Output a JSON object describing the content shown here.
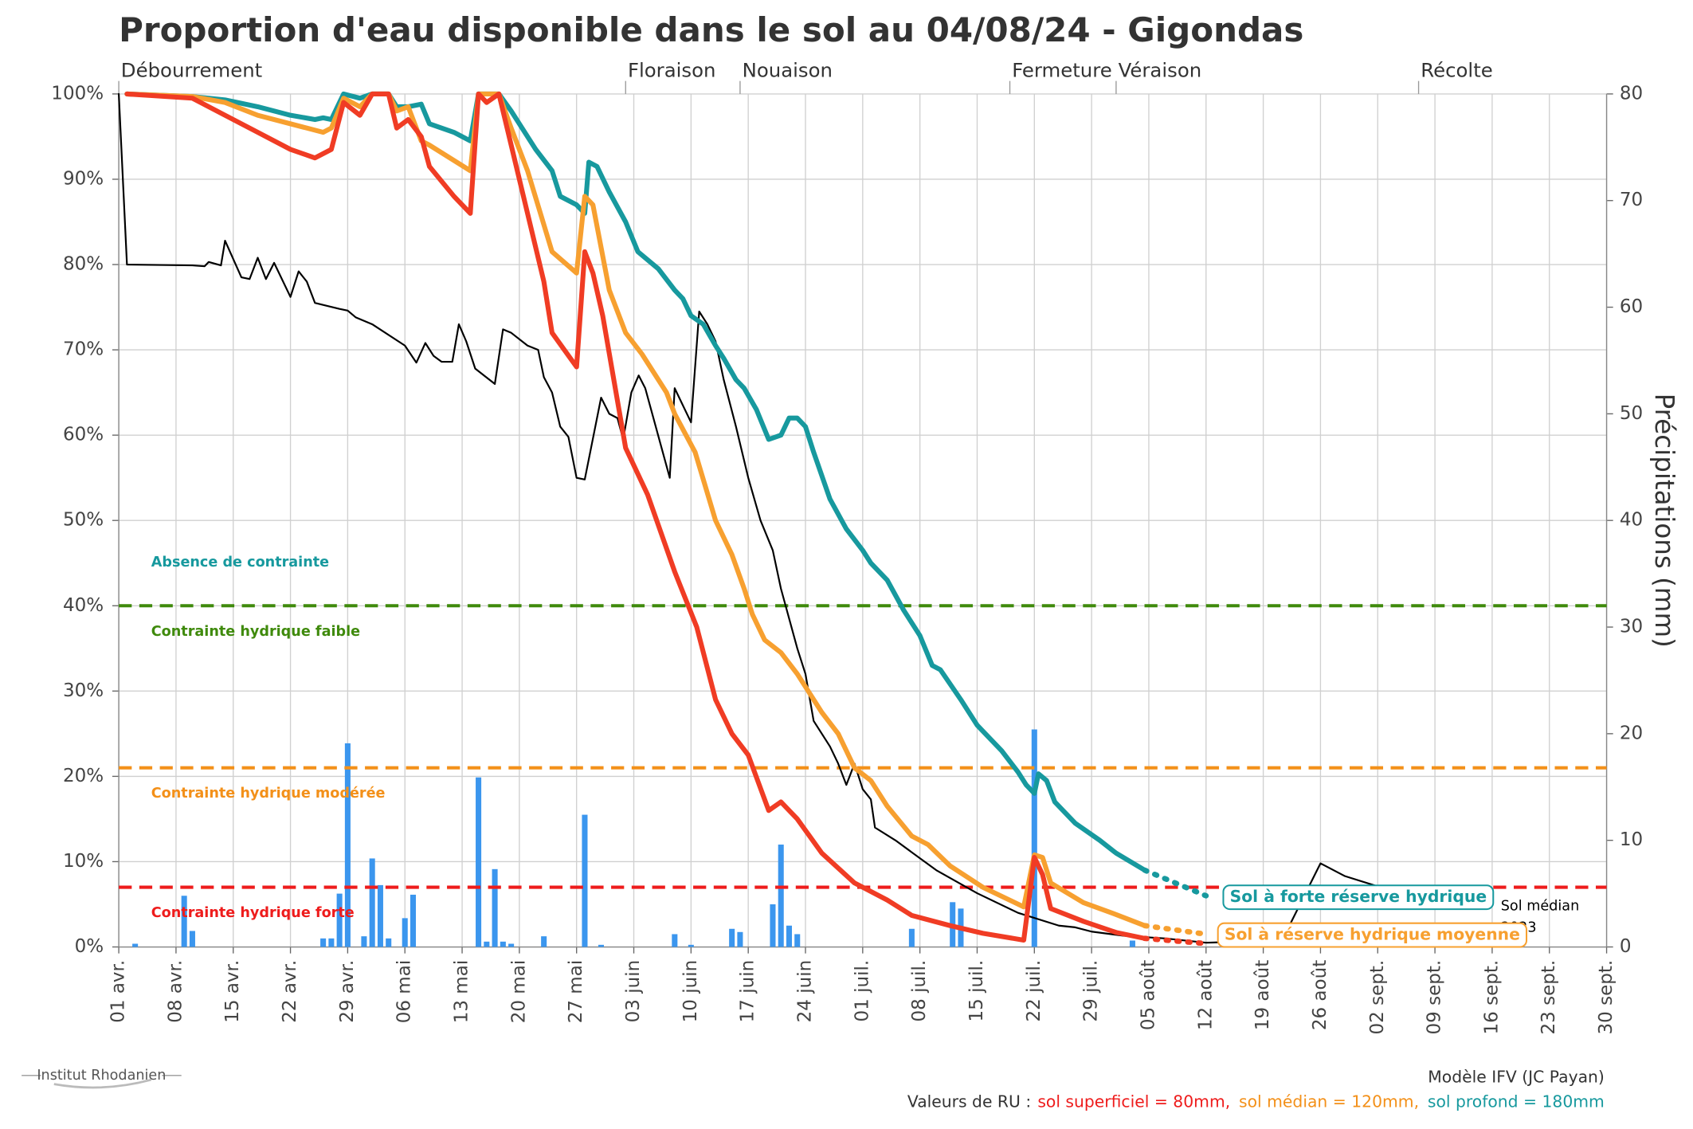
{
  "chart_data": {
    "type": "line",
    "title": "Proportion d'eau disponible dans le sol au 04/08/24 - Gigondas",
    "y2_label": "Précipitations (mm)",
    "xlim": [
      0,
      182
    ],
    "xticks": [
      {
        "value": 0,
        "label": "01 avr."
      },
      {
        "value": 7,
        "label": "08 avr."
      },
      {
        "value": 14,
        "label": "15 avr."
      },
      {
        "value": 21,
        "label": "22 avr."
      },
      {
        "value": 28,
        "label": "29 avr."
      },
      {
        "value": 35,
        "label": "06 mai"
      },
      {
        "value": 42,
        "label": "13 mai"
      },
      {
        "value": 49,
        "label": "20 mai"
      },
      {
        "value": 56,
        "label": "27 mai"
      },
      {
        "value": 63,
        "label": "03 juin"
      },
      {
        "value": 70,
        "label": "10 juin"
      },
      {
        "value": 77,
        "label": "17 juin"
      },
      {
        "value": 84,
        "label": "24 juin"
      },
      {
        "value": 91,
        "label": "01 juil."
      },
      {
        "value": 98,
        "label": "08 juil."
      },
      {
        "value": 105,
        "label": "15 juil."
      },
      {
        "value": 112,
        "label": "22 juil."
      },
      {
        "value": 119,
        "label": "29 juil."
      },
      {
        "value": 126,
        "label": "05 août"
      },
      {
        "value": 133,
        "label": "12 août"
      },
      {
        "value": 140,
        "label": "19 août"
      },
      {
        "value": 147,
        "label": "26 août"
      },
      {
        "value": 154,
        "label": "02 sept."
      },
      {
        "value": 161,
        "label": "09 sept."
      },
      {
        "value": 168,
        "label": "16 sept."
      },
      {
        "value": 175,
        "label": "23 sept."
      },
      {
        "value": 182,
        "label": "30 sept."
      }
    ],
    "ylim": [
      0,
      100
    ],
    "yticks": [
      {
        "value": 0,
        "label": "0%"
      },
      {
        "value": 10,
        "label": "10%"
      },
      {
        "value": 20,
        "label": "20%"
      },
      {
        "value": 30,
        "label": "30%"
      },
      {
        "value": 40,
        "label": "40%"
      },
      {
        "value": 50,
        "label": "50%"
      },
      {
        "value": 60,
        "label": "60%"
      },
      {
        "value": 70,
        "label": "70%"
      },
      {
        "value": 80,
        "label": "80%"
      },
      {
        "value": 90,
        "label": "90%"
      },
      {
        "value": 100,
        "label": "100%"
      }
    ],
    "y2lim": [
      0,
      80
    ],
    "y2ticks": [
      0,
      10,
      20,
      30,
      40,
      50,
      60,
      70,
      80
    ],
    "grid": true,
    "phases": [
      {
        "label": "Débourrement",
        "x": 0
      },
      {
        "label": "Floraison",
        "x": 62
      },
      {
        "label": "Nouaison",
        "x": 76
      },
      {
        "label": "Fermeture",
        "x": 109
      },
      {
        "label": "Véraison",
        "x": 122
      },
      {
        "label": "Récolte",
        "x": 159
      }
    ],
    "thresholds": [
      {
        "value": 40,
        "color": "#3f8a0c"
      },
      {
        "value": 21,
        "color": "#f39019"
      },
      {
        "value": 7,
        "color": "#ee1c1c"
      }
    ],
    "zones": [
      {
        "label": "Absence de contrainte",
        "color": "#17999e"
      },
      {
        "label": "Contrainte hydrique faible",
        "color": "#3f8a0c"
      },
      {
        "label": "Contrainte hydrique modérée",
        "color": "#f39019"
      },
      {
        "label": "Contrainte hydrique forte",
        "color": "#ee1c1c"
      }
    ],
    "series": [
      {
        "type": "bar",
        "axis": "y2",
        "color": "#3b96ee",
        "x": [
          2,
          8,
          9,
          25,
          26,
          27,
          28,
          30,
          31,
          32,
          33,
          35,
          36,
          44,
          45,
          46,
          47,
          48,
          52,
          57,
          59,
          68,
          70,
          75,
          76,
          80,
          81,
          82,
          83,
          97,
          102,
          103,
          112,
          124
        ],
        "values": [
          0.3,
          4.8,
          1.5,
          0.8,
          0.8,
          5,
          19.1,
          1,
          8.3,
          5.8,
          0.8,
          2.7,
          4.9,
          15.9,
          0.5,
          7.3,
          0.5,
          0.3,
          1,
          12.4,
          0.2,
          1.2,
          0.2,
          1.7,
          1.4,
          4,
          9.6,
          2,
          1.2,
          1.7,
          4.2,
          3.6,
          20.4,
          0.6
        ]
      },
      {
        "type": "line",
        "name": "Sol médian 2023",
        "color": "#000000",
        "x": [
          0,
          1,
          9,
          10.5,
          11,
          12.5,
          13,
          15,
          16,
          17,
          18,
          19,
          21,
          22,
          23,
          24,
          27,
          28,
          29,
          31,
          35,
          36.4,
          37.5,
          38.5,
          39.5,
          40.8,
          41.6,
          42.5,
          43.6,
          46,
          47,
          48,
          50,
          51.3,
          52,
          53,
          54,
          55,
          56,
          57,
          59,
          60,
          61,
          61.7,
          62.7,
          63.6,
          64.4,
          67.4,
          68,
          70,
          71,
          72,
          73,
          74,
          75.5,
          77,
          78.5,
          80,
          81,
          82,
          83,
          84,
          85,
          87,
          88,
          89,
          90,
          91,
          92,
          92.5,
          95,
          100,
          105,
          110,
          115,
          117,
          119,
          123,
          128,
          133,
          137,
          142,
          147,
          150,
          155,
          160,
          166.7
        ],
        "values": [
          100,
          80,
          79.9,
          79.8,
          80.3,
          79.9,
          82.8,
          78.5,
          78.3,
          80.8,
          78.3,
          80.2,
          76.2,
          79.2,
          78,
          75.5,
          74.8,
          74.6,
          73.8,
          73,
          70.5,
          68.5,
          70.8,
          69.3,
          68.6,
          68.6,
          73,
          71,
          67.8,
          66,
          72.4,
          72,
          70.5,
          70,
          66.8,
          65,
          61,
          59.8,
          55,
          54.8,
          64.4,
          62.5,
          62,
          59.5,
          65,
          67,
          65.5,
          55,
          65.5,
          61.5,
          74.5,
          73,
          71,
          66.5,
          61,
          55,
          50,
          46.5,
          42,
          38.5,
          35,
          32,
          26.5,
          23.5,
          21.5,
          19,
          21.5,
          18.5,
          17.3,
          14,
          12.5,
          9,
          6.3,
          4,
          2.5,
          2.3,
          1.8,
          1.3,
          1,
          0.5,
          0.6,
          0.2,
          9.8,
          8.3,
          6.8,
          6,
          4.7
        ]
      },
      {
        "type": "line",
        "name": "Sol à forte réserve hydrique",
        "color": "#17999e",
        "dotted_from_x": 125.5,
        "x": [
          1,
          9,
          13,
          17,
          21,
          24,
          25,
          26,
          27.5,
          29.5,
          31,
          33,
          34,
          35.4,
          37,
          38,
          41,
          43,
          44,
          46.5,
          48,
          49,
          51,
          53,
          54,
          56,
          57,
          57.5,
          58.5,
          60,
          62,
          63.5,
          66,
          68,
          69,
          70,
          71.5,
          73,
          74,
          75.5,
          76.5,
          78,
          79.5,
          81,
          82,
          83,
          84,
          85,
          87,
          89,
          91,
          92,
          94,
          96,
          98,
          99.5,
          100.5,
          103,
          105,
          106,
          108,
          110,
          111,
          112,
          112.5,
          113.5,
          114.5,
          117,
          120,
          122,
          125.5,
          133
        ],
        "values": [
          100,
          99.7,
          99.3,
          98.5,
          97.5,
          97,
          97.2,
          97,
          100,
          99.5,
          100,
          100,
          98.5,
          98.5,
          98.8,
          96.5,
          95.5,
          94.5,
          100,
          100,
          98,
          96.5,
          93.5,
          91,
          88,
          87,
          86,
          92,
          91.5,
          88.5,
          85,
          81.5,
          79.5,
          77,
          76,
          74,
          73,
          70.5,
          69,
          66.5,
          65.5,
          63,
          59.5,
          60,
          62,
          62,
          61,
          58,
          52.5,
          49,
          46.5,
          45,
          43,
          39.5,
          36.5,
          33,
          32.5,
          29,
          26,
          25,
          23,
          20.5,
          19,
          18,
          20.3,
          19.5,
          17,
          14.5,
          12.5,
          11,
          9,
          6
        ]
      },
      {
        "type": "line",
        "name": "Sol à réserve hydrique moyenne",
        "color": "#f7a030",
        "dotted_from_x": 125.5,
        "x": [
          1,
          9,
          13,
          17,
          21,
          25,
          26,
          27.5,
          29.5,
          31,
          33,
          34,
          35.4,
          37,
          38,
          43,
          44,
          46.5,
          48,
          50,
          53,
          56,
          57,
          58,
          60,
          62,
          64,
          67,
          68,
          70.5,
          73,
          75,
          76.5,
          77.5,
          79,
          81,
          83,
          86,
          88,
          90,
          92,
          94,
          97,
          99,
          101.7,
          105.7,
          110.7,
          112,
          113,
          114,
          118,
          122,
          125.5,
          133
        ],
        "values": [
          100,
          99.7,
          99,
          97.5,
          96.5,
          95.5,
          96,
          99.5,
          98.5,
          100,
          100,
          98,
          98.5,
          94.5,
          94,
          91,
          100,
          100,
          96,
          91,
          81.5,
          79,
          88,
          87,
          77,
          72,
          69.5,
          65,
          62.5,
          58,
          50,
          46,
          42,
          39,
          36,
          34.5,
          32,
          27.5,
          25,
          21,
          19.5,
          16.5,
          13,
          12,
          9.5,
          7,
          4.7,
          10.8,
          10.5,
          7.5,
          5.2,
          3.8,
          2.5,
          1.5
        ]
      },
      {
        "type": "line",
        "color": "#f03c24",
        "dotted_from_x": 125.5,
        "x": [
          1,
          9,
          13,
          17,
          21,
          24,
          26,
          27.5,
          29.5,
          31,
          33,
          34,
          35.4,
          37,
          38,
          41,
          43,
          44,
          45,
          46.5,
          48,
          50,
          52,
          53,
          56,
          57,
          58,
          59.2,
          62,
          64.7,
          68,
          70.7,
          73,
          75,
          77,
          79.5,
          81,
          83,
          86,
          90,
          94,
          97,
          101.7,
          105.7,
          110.7,
          112,
          113,
          114,
          118,
          122,
          125.5,
          133
        ],
        "values": [
          100,
          99.5,
          97.5,
          95.5,
          93.5,
          92.5,
          93.5,
          99,
          97.5,
          100,
          100,
          96,
          97,
          95,
          91.5,
          88,
          86,
          100,
          99,
          100,
          94,
          86,
          78,
          72,
          68,
          81.5,
          79,
          74,
          58.5,
          53,
          44,
          37.5,
          29,
          25,
          22.5,
          16,
          17,
          15,
          11,
          7.5,
          5.5,
          3.7,
          2.5,
          1.6,
          0.8,
          10.5,
          8.5,
          4.5,
          3,
          1.7,
          1,
          0.4
        ]
      }
    ],
    "footer": {
      "model": "Modèle IFV (JC Payan)",
      "ru_label": "Valeurs de RU :",
      "ru_values": [
        {
          "text": "sol superficiel = 80mm,",
          "color": "#ee1c1c"
        },
        {
          "text": "sol médian = 120mm,",
          "color": "#f39019"
        },
        {
          "text": "sol profond = 180mm",
          "color": "#17999e"
        }
      ],
      "logo": "Institut Rhodanien"
    }
  }
}
